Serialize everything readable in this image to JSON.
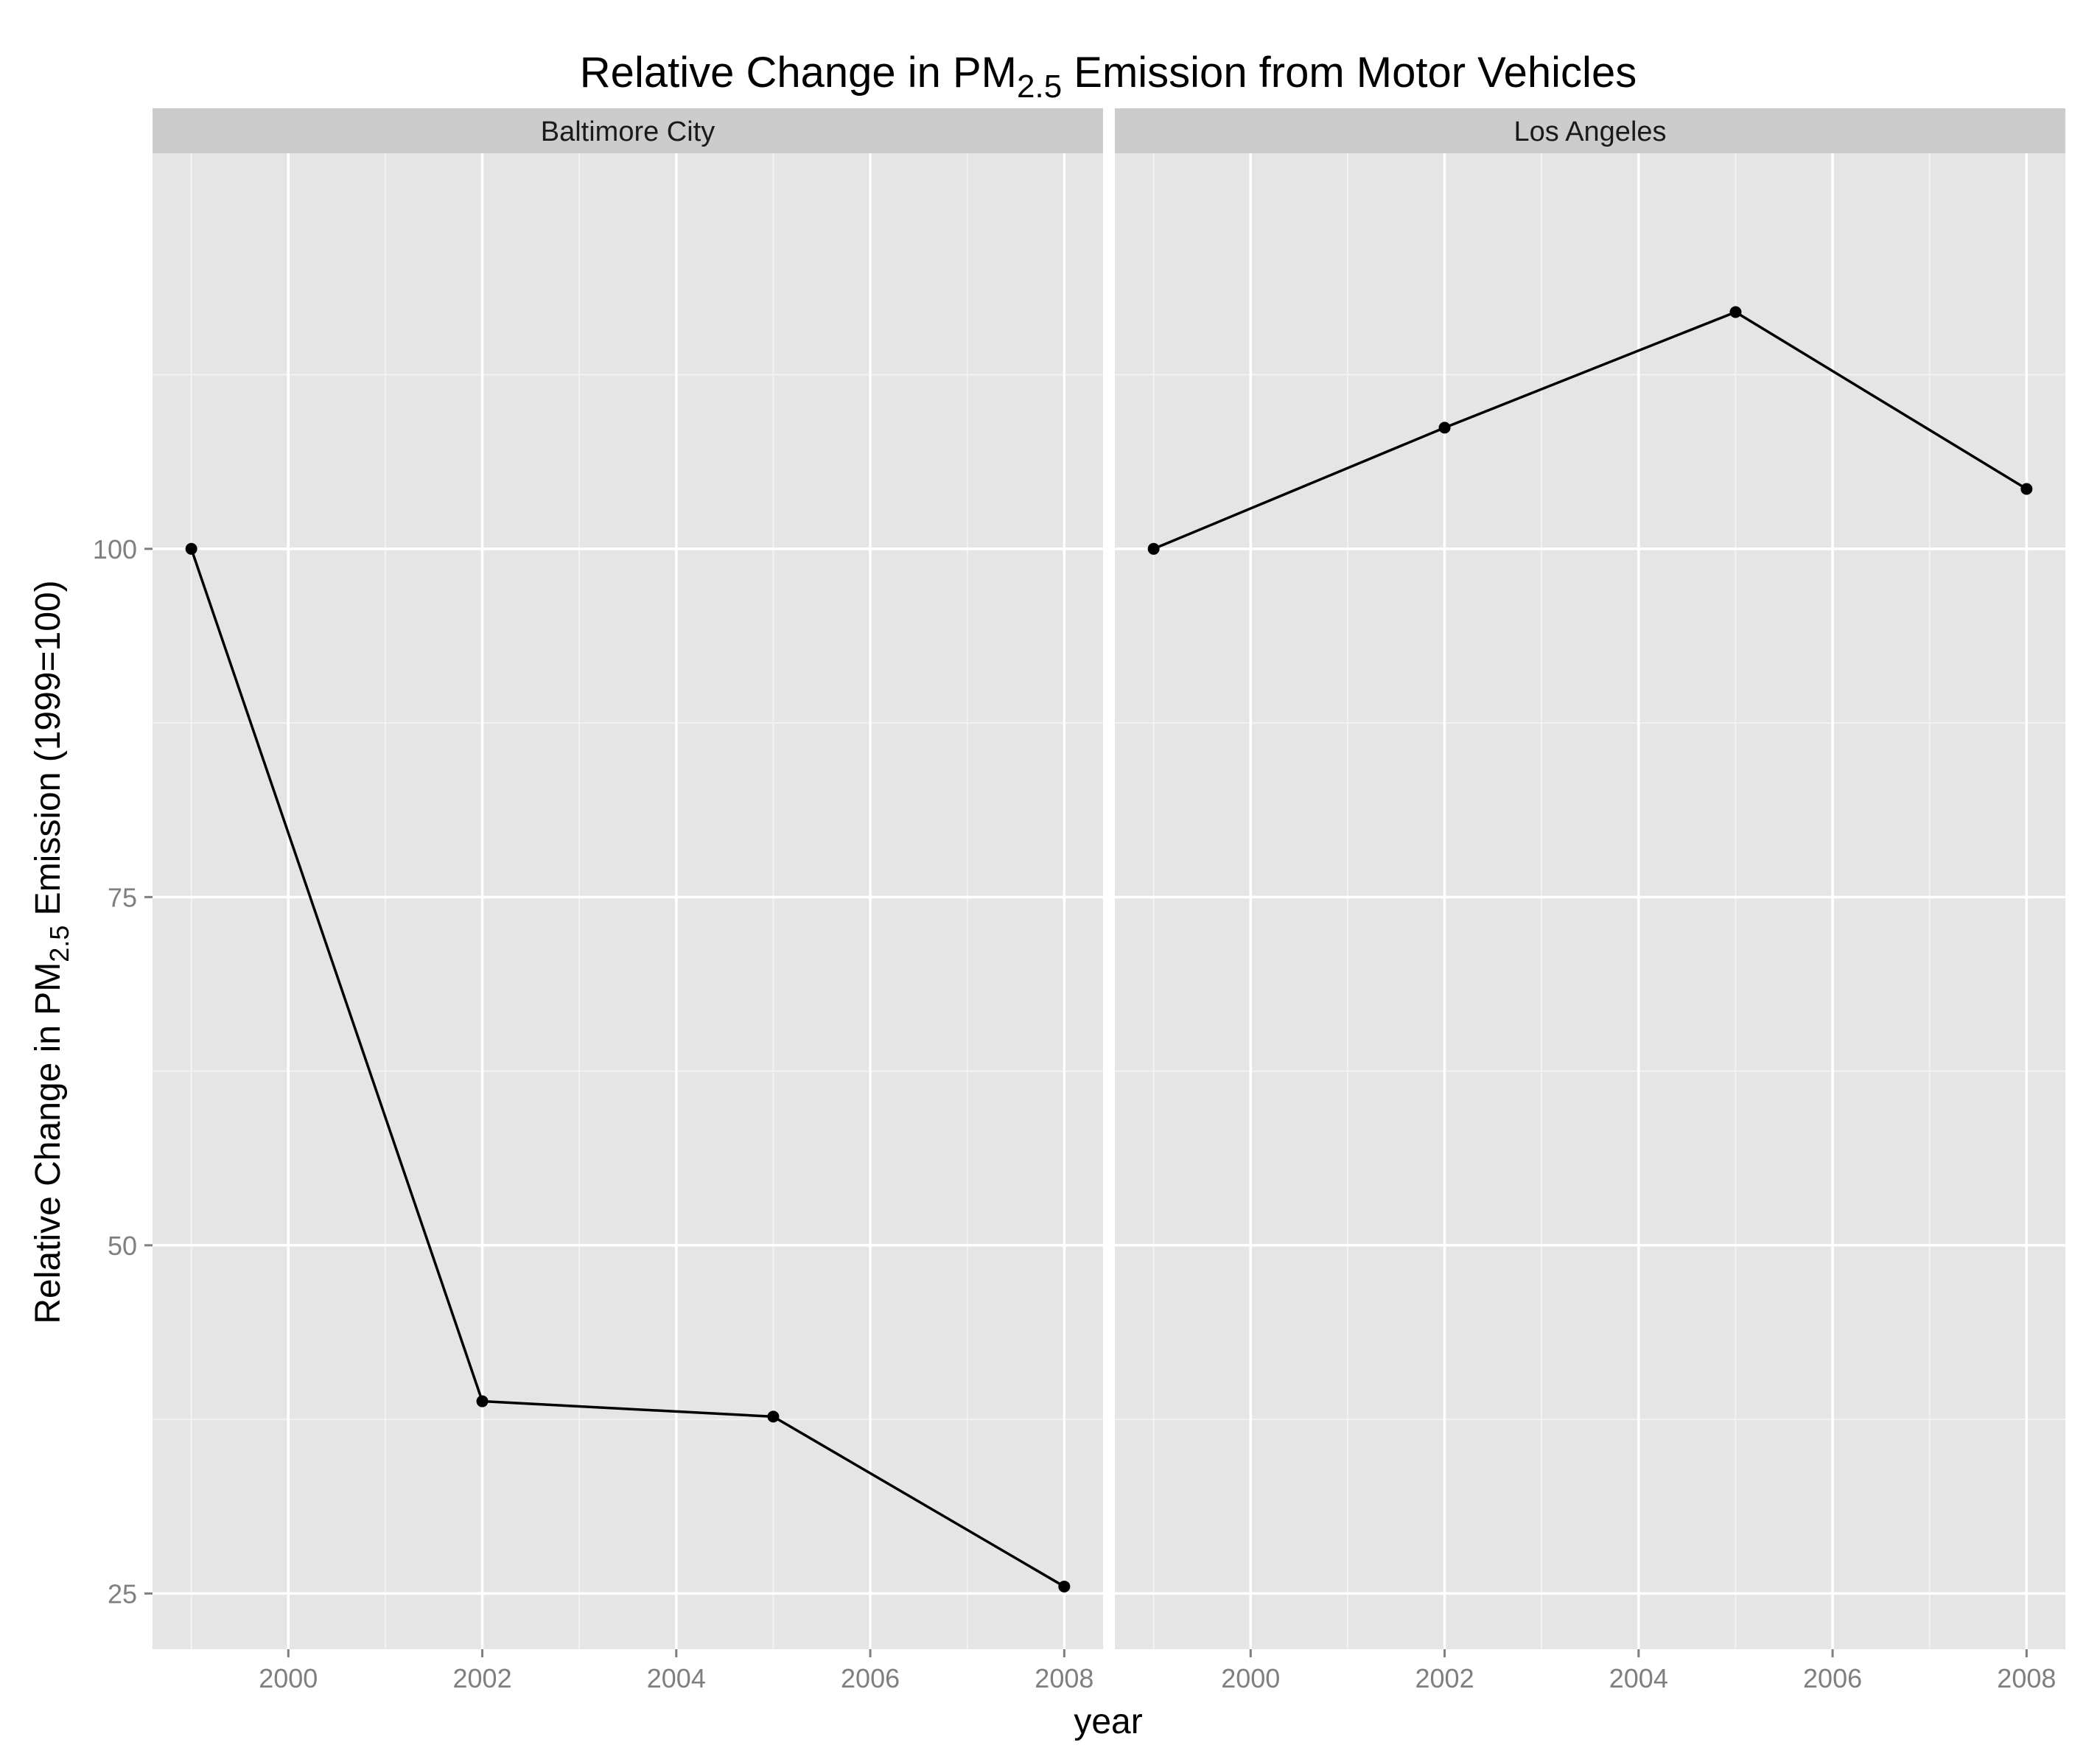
{
  "chart_data": {
    "type": "line",
    "title": {
      "pre": "Relative Change in PM",
      "sub": "2.5",
      "post": " Emission from Motor Vehicles"
    },
    "xlabel": "year",
    "ylabel": {
      "pre": "Relative Change in PM",
      "sub": "2.5",
      "post": " Emission (1999=100)"
    },
    "xlim": [
      1998.6,
      2008.4
    ],
    "ylim": [
      21.0,
      128.4
    ],
    "x_ticks": [
      2000,
      2002,
      2004,
      2006,
      2008
    ],
    "x_tick_labels": [
      "2000",
      "2002",
      "2004",
      "2006",
      "2008"
    ],
    "y_ticks": [
      25,
      50,
      75,
      100
    ],
    "y_tick_labels": [
      "25",
      "50",
      "75",
      "100"
    ],
    "grid": true,
    "facets": [
      {
        "label": "Baltimore City",
        "series": [
          {
            "x": [
              1999,
              2002,
              2005,
              2008
            ],
            "y": [
              100,
              38.8,
              37.7,
              25.5
            ]
          }
        ]
      },
      {
        "label": "Los Angeles",
        "series": [
          {
            "x": [
              1999,
              2002,
              2005,
              2008
            ],
            "y": [
              100,
              108.7,
              117.0,
              104.3
            ]
          }
        ]
      }
    ]
  }
}
